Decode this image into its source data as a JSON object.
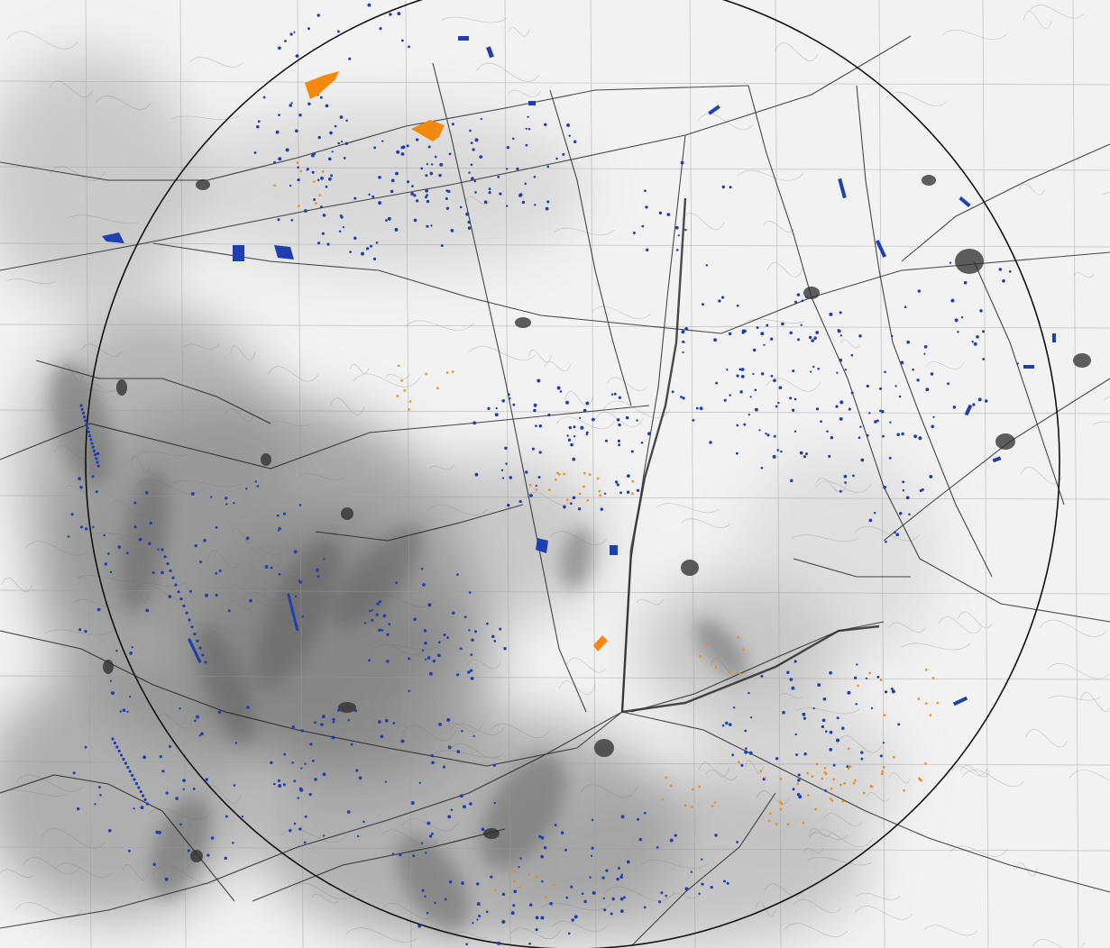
{
  "map": {
    "title": "",
    "colors": {
      "paper": "#f2f2f2",
      "relief_dark": "#5a5a5a",
      "relief_mid": "#9a9a9a",
      "grid": "#9c9c9c",
      "road": "#1c1c1c",
      "railway": "#2a2a2a",
      "buffer_circle": "#111111",
      "feature_blue": "#1f3fb0",
      "feature_orange": "#f5890f"
    },
    "layers": [
      {
        "name": "topographic-base-map",
        "kind": "raster"
      },
      {
        "name": "buffer-circle",
        "kind": "ring"
      },
      {
        "name": "blue-features",
        "kind": "polygons-and-points"
      },
      {
        "name": "orange-features",
        "kind": "polygons-and-points"
      }
    ]
  }
}
